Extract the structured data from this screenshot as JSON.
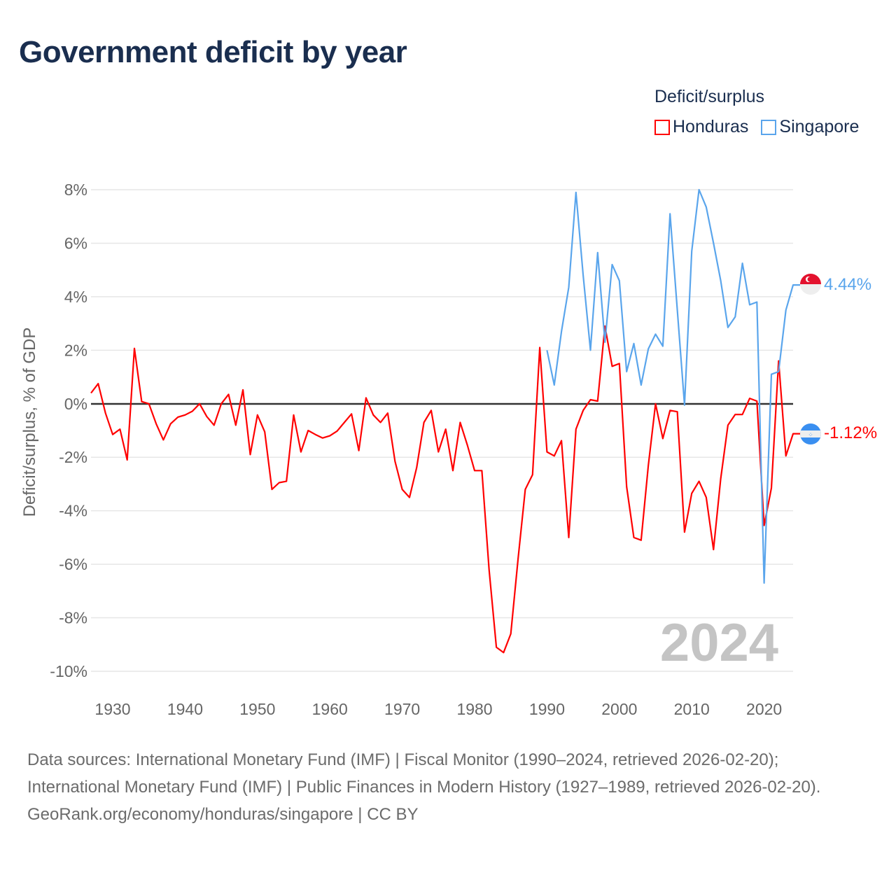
{
  "title": "Government deficit by year",
  "legend": {
    "title": "Deficit/surplus",
    "items": [
      {
        "name": "Honduras",
        "color": "#ff0000"
      },
      {
        "name": "Singapore",
        "color": "#5aa5ec"
      }
    ]
  },
  "year_label": "2024",
  "end_labels": {
    "singapore": "4.44%",
    "honduras": "-1.12%"
  },
  "footer": {
    "sources": "Data sources: International Monetary Fund (IMF) | Fiscal Monitor (1990–2024, retrieved 2026-02-20); International Monetary Fund (IMF) | Public Finances in Modern History (1927–1989, retrieved 2026-02-20).",
    "credit": "GeoRank.org/economy/honduras/singapore | CC BY"
  },
  "chart_data": {
    "type": "line",
    "title": "Government deficit by year",
    "xlabel": "",
    "ylabel": "Deficit/surplus, % of GDP",
    "xlim": [
      1927,
      2024
    ],
    "ylim": [
      -10,
      8
    ],
    "xticks": [
      1930,
      1940,
      1950,
      1960,
      1970,
      1980,
      1990,
      2000,
      2010,
      2020
    ],
    "yticks": [
      8,
      6,
      4,
      2,
      0,
      -2,
      -4,
      -6,
      -8,
      -10
    ],
    "ytick_labels": [
      "8%",
      "6%",
      "4%",
      "2%",
      "0%",
      "-2%",
      "-4%",
      "-6%",
      "-8%",
      "-10%"
    ],
    "grid": true,
    "legend_position": "top-right",
    "series": [
      {
        "name": "Honduras",
        "color": "#ff0000",
        "start_year": 1927,
        "values": [
          0.4,
          0.75,
          -0.35,
          -1.15,
          -0.95,
          -2.1,
          2.07,
          0.08,
          0.0,
          -0.75,
          -1.35,
          -0.75,
          -0.5,
          -0.42,
          -0.28,
          0.0,
          -0.48,
          -0.8,
          0.0,
          0.35,
          -0.8,
          0.52,
          -1.9,
          -0.42,
          -1.05,
          -3.2,
          -2.95,
          -2.9,
          -0.42,
          -1.8,
          -1.0,
          -1.15,
          -1.28,
          -1.2,
          -1.02,
          -0.7,
          -0.38,
          -1.75,
          0.22,
          -0.42,
          -0.7,
          -0.35,
          -2.15,
          -3.2,
          -3.5,
          -2.38,
          -0.7,
          -0.25,
          -1.8,
          -0.95,
          -2.5,
          -0.7,
          -1.55,
          -2.5,
          -2.5,
          -6.2,
          -9.1,
          -9.3,
          -8.6,
          -5.8,
          -3.2,
          -2.65,
          2.1,
          -1.8,
          -1.95,
          -1.38,
          -5.0,
          -0.95,
          -0.25,
          0.15,
          0.1,
          2.9,
          1.4,
          1.5,
          -3.1,
          -5.0,
          -5.1,
          -2.3,
          0.0,
          -1.3,
          -0.25,
          -0.3,
          -4.8,
          -3.35,
          -2.9,
          -3.5,
          -5.45,
          -2.8,
          -0.8,
          -0.4,
          -0.4,
          0.2,
          0.1,
          -4.55,
          -3.15,
          1.6,
          -1.95,
          -1.12
        ]
      },
      {
        "name": "Singapore",
        "color": "#5aa5ec",
        "start_year": 1990,
        "values": [
          2.0,
          0.7,
          2.7,
          4.35,
          7.9,
          4.8,
          2.0,
          5.65,
          2.3,
          5.2,
          4.6,
          1.2,
          2.25,
          0.7,
          2.05,
          2.6,
          2.15,
          7.1,
          3.5,
          -0.05,
          5.7,
          8.0,
          7.35,
          6.0,
          4.6,
          2.85,
          3.25,
          5.25,
          3.7,
          3.8,
          -6.7,
          1.1,
          1.2,
          3.5,
          4.44
        ]
      }
    ]
  }
}
